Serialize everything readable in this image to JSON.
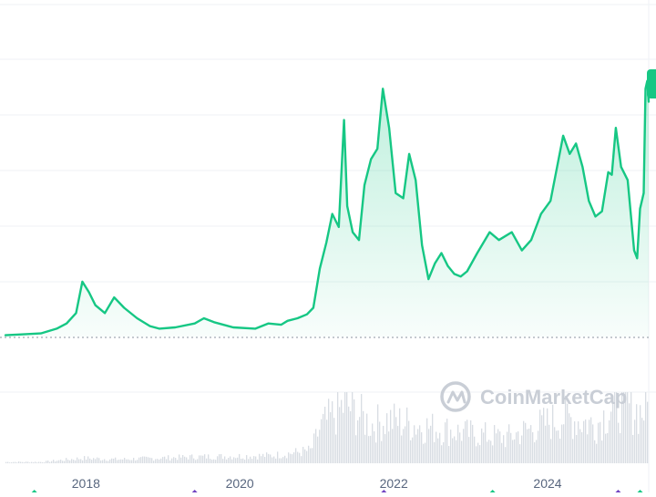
{
  "watermark": {
    "text": "CoinMarketCap"
  },
  "colors": {
    "line": "#16c784",
    "area_top": "#16c784",
    "volume": "#d8dde3",
    "baseline": "#8a939f",
    "grid": "#eff2f5",
    "marker": "#16c784",
    "event_marker": "#6f42c1"
  },
  "chart_data": {
    "type": "area",
    "grid": true,
    "xlabel": "",
    "ylabel": "",
    "x_tick_labels": [
      "2018",
      "2020",
      "2022",
      "2024"
    ],
    "x_range": [
      "2016-12-15",
      "2025-04-25"
    ],
    "y_note": "no y-axis tick labels visible; price values given in relative units (0 = baseline level)",
    "ylim": [
      0,
      100
    ],
    "series": [
      {
        "type": "area",
        "points": [
          [
            "2016-12-15",
            0.5
          ],
          [
            "2017-03-01",
            0.8
          ],
          [
            "2017-06-01",
            1.2
          ],
          [
            "2017-08-15",
            3
          ],
          [
            "2017-10-01",
            5
          ],
          [
            "2017-11-15",
            9
          ],
          [
            "2017-12-15",
            21
          ],
          [
            "2018-01-15",
            17
          ],
          [
            "2018-02-15",
            12
          ],
          [
            "2018-04-01",
            9
          ],
          [
            "2018-05-15",
            15
          ],
          [
            "2018-07-01",
            11
          ],
          [
            "2018-09-01",
            7
          ],
          [
            "2018-11-01",
            4
          ],
          [
            "2018-12-15",
            3
          ],
          [
            "2019-03-01",
            3.5
          ],
          [
            "2019-06-01",
            5
          ],
          [
            "2019-07-15",
            7
          ],
          [
            "2019-09-01",
            5.5
          ],
          [
            "2019-12-01",
            3.5
          ],
          [
            "2020-03-15",
            3
          ],
          [
            "2020-05-15",
            5
          ],
          [
            "2020-07-15",
            4.5
          ],
          [
            "2020-08-15",
            6
          ],
          [
            "2020-10-01",
            7
          ],
          [
            "2020-11-15",
            8.5
          ],
          [
            "2020-12-15",
            11
          ],
          [
            "2021-01-15",
            26
          ],
          [
            "2021-02-15",
            36
          ],
          [
            "2021-03-15",
            47
          ],
          [
            "2021-04-15",
            42
          ],
          [
            "2021-05-10",
            83
          ],
          [
            "2021-05-25",
            50
          ],
          [
            "2021-06-20",
            40
          ],
          [
            "2021-07-20",
            37
          ],
          [
            "2021-08-15",
            58
          ],
          [
            "2021-09-15",
            68
          ],
          [
            "2021-10-15",
            72
          ],
          [
            "2021-11-10",
            95
          ],
          [
            "2021-12-10",
            80
          ],
          [
            "2022-01-10",
            55
          ],
          [
            "2022-02-15",
            53
          ],
          [
            "2022-03-15",
            70
          ],
          [
            "2022-04-15",
            60
          ],
          [
            "2022-05-15",
            35
          ],
          [
            "2022-06-15",
            22
          ],
          [
            "2022-07-15",
            28
          ],
          [
            "2022-08-15",
            32
          ],
          [
            "2022-09-15",
            27
          ],
          [
            "2022-10-15",
            24
          ],
          [
            "2022-11-15",
            23
          ],
          [
            "2022-12-15",
            25
          ],
          [
            "2023-02-01",
            32
          ],
          [
            "2023-04-01",
            40
          ],
          [
            "2023-05-15",
            37
          ],
          [
            "2023-07-15",
            40
          ],
          [
            "2023-09-01",
            33
          ],
          [
            "2023-10-15",
            37
          ],
          [
            "2023-12-01",
            47
          ],
          [
            "2024-01-15",
            52
          ],
          [
            "2024-03-15",
            77
          ],
          [
            "2024-04-15",
            70
          ],
          [
            "2024-05-15",
            74
          ],
          [
            "2024-06-15",
            65
          ],
          [
            "2024-07-15",
            52
          ],
          [
            "2024-08-15",
            46
          ],
          [
            "2024-09-15",
            48
          ],
          [
            "2024-10-15",
            63
          ],
          [
            "2024-11-01",
            62
          ],
          [
            "2024-11-20",
            80
          ],
          [
            "2024-12-15",
            65
          ],
          [
            "2025-01-15",
            60
          ],
          [
            "2025-02-15",
            33
          ],
          [
            "2025-03-01",
            30
          ],
          [
            "2025-03-15",
            49
          ],
          [
            "2025-04-01",
            55
          ],
          [
            "2025-04-10",
            95
          ],
          [
            "2025-04-18",
            98
          ],
          [
            "2025-04-25",
            90
          ]
        ]
      },
      {
        "type": "bar",
        "role": "volume",
        "points": [
          [
            "2017-06-01",
            1
          ],
          [
            "2017-12-15",
            4
          ],
          [
            "2018-06-01",
            3
          ],
          [
            "2019-06-01",
            5
          ],
          [
            "2020-06-01",
            6
          ],
          [
            "2020-12-01",
            10
          ],
          [
            "2021-01-15",
            28
          ],
          [
            "2021-05-15",
            46
          ],
          [
            "2021-09-15",
            30
          ],
          [
            "2021-12-01",
            34
          ],
          [
            "2022-06-15",
            28
          ],
          [
            "2022-11-15",
            24
          ],
          [
            "2023-06-15",
            20
          ],
          [
            "2024-03-15",
            36
          ],
          [
            "2024-08-15",
            30
          ],
          [
            "2024-11-20",
            48
          ],
          [
            "2025-03-15",
            40
          ],
          [
            "2025-04-18",
            44
          ]
        ]
      }
    ],
    "markers": [
      {
        "date": "2017-05-01",
        "kind": "diamond"
      },
      {
        "date": "2019-06-01",
        "kind": "diamond-purple"
      },
      {
        "date": "2021-11-15",
        "kind": "diamond-purple"
      },
      {
        "date": "2023-04-15",
        "kind": "diamond"
      },
      {
        "date": "2024-12-01",
        "kind": "diamond-purple"
      },
      {
        "date": "2025-03-15",
        "kind": "diamond"
      }
    ]
  }
}
